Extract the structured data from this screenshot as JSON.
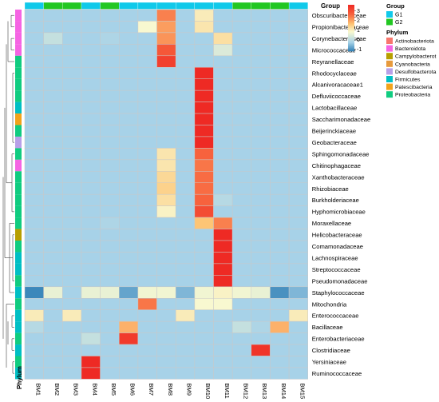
{
  "chart_data": {
    "type": "heatmap",
    "columns": [
      "BM1",
      "BM2",
      "BM3",
      "BM4",
      "BM5",
      "BM6",
      "BM7",
      "BM8",
      "BM9",
      "BM10",
      "BM11",
      "BM12",
      "BM13",
      "BM14",
      "BM15"
    ],
    "column_groups": [
      "G1",
      "G2",
      "G2",
      "G1",
      "G2",
      "G1",
      "G1",
      "G1",
      "G1",
      "G1",
      "G1",
      "G2",
      "G2",
      "G2",
      "G1"
    ],
    "rows": [
      {
        "name": "Obscuribacteraceae",
        "phylum": "Bacteroidota",
        "values": [
          -0.3,
          -0.3,
          -0.3,
          -0.3,
          -0.3,
          -0.3,
          -0.3,
          2.3,
          -0.3,
          1.0,
          -0.3,
          -0.3,
          -0.3,
          -0.3,
          -0.3
        ]
      },
      {
        "name": "Propionibacteriaceae",
        "phylum": "Bacteroidota",
        "values": [
          -0.3,
          -0.3,
          -0.3,
          -0.3,
          -0.3,
          -0.3,
          0.8,
          2.0,
          -0.3,
          1.1,
          -0.3,
          -0.3,
          -0.3,
          -0.3,
          -0.3
        ]
      },
      {
        "name": "Corynebacteriaceae",
        "phylum": "Bacteroidota",
        "values": [
          -0.3,
          0.1,
          -0.3,
          -0.3,
          -0.2,
          -0.3,
          -0.3,
          2.1,
          -0.3,
          -0.3,
          1.2,
          -0.3,
          -0.3,
          -0.3,
          -0.3
        ]
      },
      {
        "name": "Micrococcaceae",
        "phylum": "Bacteroidota",
        "values": [
          -0.3,
          -0.3,
          -0.3,
          -0.3,
          -0.3,
          -0.3,
          -0.3,
          2.8,
          -0.3,
          -0.3,
          0.4,
          -0.3,
          -0.3,
          -0.3,
          -0.3
        ]
      },
      {
        "name": "Reyranellaceae",
        "phylum": "Proteobacteria",
        "values": [
          -0.3,
          -0.3,
          -0.3,
          -0.3,
          -0.3,
          -0.3,
          -0.3,
          3.2,
          -0.3,
          -0.3,
          -0.3,
          -0.3,
          -0.3,
          -0.3,
          -0.3
        ]
      },
      {
        "name": "Rhodocyclaceae",
        "phylum": "Proteobacteria",
        "values": [
          -0.3,
          -0.3,
          -0.3,
          -0.3,
          -0.3,
          -0.3,
          -0.3,
          -0.3,
          -0.3,
          3.6,
          -0.3,
          -0.3,
          -0.3,
          -0.3,
          -0.3
        ]
      },
      {
        "name": "Alcanivoracaceae1",
        "phylum": "Proteobacteria",
        "values": [
          -0.3,
          -0.3,
          -0.3,
          -0.3,
          -0.3,
          -0.3,
          -0.3,
          -0.3,
          -0.3,
          3.6,
          -0.3,
          -0.3,
          -0.3,
          -0.3,
          -0.3
        ]
      },
      {
        "name": "Defluviicoccaceae",
        "phylum": "Proteobacteria",
        "values": [
          -0.3,
          -0.3,
          -0.3,
          -0.3,
          -0.3,
          -0.3,
          -0.3,
          -0.3,
          -0.3,
          3.6,
          -0.3,
          -0.3,
          -0.3,
          -0.3,
          -0.3
        ]
      },
      {
        "name": "Lactobacillaceae",
        "phylum": "Firmicutes",
        "values": [
          -0.3,
          -0.3,
          -0.3,
          -0.3,
          -0.3,
          -0.3,
          -0.3,
          -0.3,
          -0.3,
          3.6,
          -0.3,
          -0.3,
          -0.3,
          -0.3,
          -0.3
        ]
      },
      {
        "name": "Saccharimonadaceae",
        "phylum": "Patescibacteria",
        "values": [
          -0.3,
          -0.3,
          -0.3,
          -0.3,
          -0.3,
          -0.3,
          -0.3,
          -0.3,
          -0.3,
          3.6,
          -0.3,
          -0.3,
          -0.3,
          -0.3,
          -0.3
        ]
      },
      {
        "name": "Beijerinckiaceae",
        "phylum": "Proteobacteria",
        "values": [
          -0.3,
          -0.3,
          -0.3,
          -0.3,
          -0.3,
          -0.3,
          -0.3,
          -0.3,
          -0.3,
          3.6,
          -0.3,
          -0.3,
          -0.3,
          -0.3,
          -0.3
        ]
      },
      {
        "name": "Geobacteraceae",
        "phylum": "Desulfobacterota",
        "values": [
          -0.3,
          -0.3,
          -0.3,
          -0.3,
          -0.3,
          -0.3,
          -0.3,
          -0.3,
          -0.3,
          3.6,
          -0.3,
          -0.3,
          -0.3,
          -0.3,
          -0.3
        ]
      },
      {
        "name": "Sphingomonadaceae",
        "phylum": "Proteobacteria",
        "values": [
          -0.3,
          -0.3,
          -0.3,
          -0.3,
          -0.3,
          -0.3,
          -0.3,
          1.1,
          -0.3,
          2.6,
          -0.3,
          -0.3,
          -0.3,
          -0.3,
          -0.3
        ]
      },
      {
        "name": "Chitinophagaceae",
        "phylum": "Bacteroidota",
        "values": [
          -0.3,
          -0.3,
          -0.3,
          -0.3,
          -0.3,
          -0.3,
          -0.3,
          1.1,
          -0.3,
          2.4,
          -0.3,
          -0.3,
          -0.3,
          -0.3,
          -0.3
        ]
      },
      {
        "name": "Xanthobacteraceae",
        "phylum": "Proteobacteria",
        "values": [
          -0.3,
          -0.3,
          -0.3,
          -0.3,
          -0.3,
          -0.3,
          -0.3,
          1.3,
          -0.3,
          2.5,
          -0.3,
          -0.3,
          -0.3,
          -0.3,
          -0.3
        ]
      },
      {
        "name": "Rhizobiaceae",
        "phylum": "Proteobacteria",
        "values": [
          -0.3,
          -0.3,
          -0.3,
          -0.3,
          -0.3,
          -0.3,
          -0.3,
          1.4,
          -0.3,
          2.5,
          -0.3,
          -0.3,
          -0.3,
          -0.3,
          -0.3
        ]
      },
      {
        "name": "Burkholderiaceae",
        "phylum": "Proteobacteria",
        "values": [
          -0.3,
          -0.3,
          -0.3,
          -0.3,
          -0.3,
          -0.3,
          -0.3,
          1.2,
          -0.3,
          2.6,
          -0.1,
          -0.3,
          -0.3,
          -0.3,
          -0.3
        ]
      },
      {
        "name": "Hyphomicrobiaceae",
        "phylum": "Proteobacteria",
        "values": [
          -0.3,
          -0.3,
          -0.3,
          -0.3,
          -0.3,
          -0.3,
          -0.3,
          0.9,
          -0.3,
          3.0,
          -0.3,
          -0.3,
          -0.3,
          -0.3,
          -0.3
        ]
      },
      {
        "name": "Moraxellaceae",
        "phylum": "Proteobacteria",
        "values": [
          -0.3,
          -0.3,
          -0.3,
          -0.3,
          -0.2,
          -0.3,
          -0.3,
          -0.3,
          -0.3,
          1.6,
          2.3,
          -0.3,
          -0.3,
          -0.3,
          -0.3
        ]
      },
      {
        "name": "Helicobacteraceae",
        "phylum": "Campylobacterot",
        "values": [
          -0.3,
          -0.3,
          -0.3,
          -0.3,
          -0.3,
          -0.3,
          -0.3,
          -0.3,
          -0.3,
          -0.3,
          3.6,
          -0.3,
          -0.3,
          -0.3,
          -0.3
        ]
      },
      {
        "name": "Comamonadaceae",
        "phylum": "Proteobacteria",
        "values": [
          -0.3,
          -0.3,
          -0.3,
          -0.3,
          -0.3,
          -0.3,
          -0.3,
          -0.3,
          -0.3,
          -0.3,
          3.6,
          -0.3,
          -0.3,
          -0.3,
          -0.3
        ]
      },
      {
        "name": "Lachnospiraceae",
        "phylum": "Firmicutes",
        "values": [
          -0.3,
          -0.3,
          -0.3,
          -0.3,
          -0.3,
          -0.3,
          -0.3,
          -0.3,
          -0.3,
          -0.3,
          3.6,
          -0.3,
          -0.3,
          -0.3,
          -0.3
        ]
      },
      {
        "name": "Streptococcaceae",
        "phylum": "Firmicutes",
        "values": [
          -0.3,
          -0.3,
          -0.3,
          -0.3,
          -0.3,
          -0.3,
          -0.3,
          -0.3,
          -0.3,
          -0.3,
          3.6,
          -0.3,
          -0.3,
          -0.3,
          -0.3
        ]
      },
      {
        "name": "Pseudomonadaceae",
        "phylum": "Proteobacteria",
        "values": [
          -0.3,
          -0.3,
          -0.3,
          -0.3,
          -0.3,
          -0.3,
          -0.3,
          -0.3,
          -0.3,
          -0.3,
          3.6,
          -0.3,
          -0.3,
          -0.3,
          -0.3
        ]
      },
      {
        "name": "Staphylococcaceae",
        "phylum": "Firmicutes",
        "values": [
          -1.1,
          0.6,
          -0.3,
          0.6,
          0.6,
          -0.8,
          0.7,
          0.7,
          -0.6,
          0.7,
          0.9,
          0.7,
          0.6,
          -1.0,
          -0.6
        ]
      },
      {
        "name": "Mitochondria",
        "phylum": "Proteobacteria",
        "values": [
          -0.3,
          -0.3,
          -0.3,
          -0.3,
          -0.3,
          -0.3,
          2.4,
          -0.3,
          -0.3,
          0.8,
          0.8,
          -0.3,
          -0.3,
          -0.3,
          -0.3
        ]
      },
      {
        "name": "Enterococcaceae",
        "phylum": "Firmicutes",
        "values": [
          1.0,
          -0.3,
          1.0,
          -0.3,
          -0.3,
          -0.3,
          -0.3,
          -0.3,
          1.0,
          -0.3,
          -0.3,
          -0.3,
          -0.3,
          -0.3,
          1.0
        ]
      },
      {
        "name": "Bacillaceae",
        "phylum": "Firmicutes",
        "values": [
          -0.1,
          -0.3,
          -0.3,
          -0.3,
          -0.3,
          1.8,
          -0.3,
          -0.3,
          -0.3,
          -0.3,
          -0.3,
          0.1,
          -0.2,
          1.8,
          -0.3
        ]
      },
      {
        "name": "Enterobacteriaceae",
        "phylum": "Proteobacteria",
        "values": [
          -0.3,
          -0.3,
          -0.3,
          0.1,
          -0.3,
          3.3,
          -0.3,
          -0.3,
          -0.3,
          -0.3,
          -0.3,
          -0.3,
          -0.3,
          -0.3,
          -0.3
        ]
      },
      {
        "name": "Clostridiaceae",
        "phylum": "Firmicutes",
        "values": [
          -0.3,
          -0.3,
          -0.3,
          -0.3,
          -0.3,
          -0.3,
          -0.3,
          -0.3,
          -0.3,
          -0.3,
          -0.3,
          -0.3,
          3.4,
          -0.3,
          -0.3
        ]
      },
      {
        "name": "Yersiniaceae",
        "phylum": "Proteobacteria",
        "values": [
          -0.3,
          -0.3,
          -0.3,
          3.6,
          -0.3,
          -0.3,
          -0.3,
          -0.3,
          -0.3,
          -0.3,
          -0.3,
          -0.3,
          -0.3,
          -0.3,
          -0.3
        ]
      },
      {
        "name": "Ruminococcaceae",
        "phylum": "Firmicutes",
        "values": [
          -0.3,
          -0.3,
          -0.3,
          3.6,
          -0.3,
          -0.3,
          -0.3,
          -0.3,
          -0.3,
          -0.3,
          -0.3,
          -0.3,
          -0.3,
          -0.3,
          -0.3
        ]
      }
    ],
    "color_scale": {
      "ticks": [
        3,
        2,
        1,
        0,
        -1
      ],
      "stops": [
        {
          "value": -1.2,
          "color": "#2f7fb5"
        },
        {
          "value": -0.3,
          "color": "#a7d2e8"
        },
        {
          "value": 0.8,
          "color": "#f8f8d0"
        },
        {
          "value": 1.6,
          "color": "#fdc575"
        },
        {
          "value": 2.6,
          "color": "#f7623d"
        },
        {
          "value": 3.6,
          "color": "#ee2a24"
        }
      ]
    },
    "group_annotation": {
      "title": "Group",
      "levels": [
        "G1",
        "G2"
      ],
      "colors": {
        "G1": "#10c9ea",
        "G2": "#22c722"
      }
    },
    "row_annotation": {
      "title": "Phylum",
      "levels": [
        "Actinobacteriota",
        "Bacteroidota",
        "Campylobacterot",
        "Cyanobacteria",
        "Desulfobacterota",
        "Firmicutes",
        "Patescibacteria",
        "Proteobacteria"
      ],
      "colors": {
        "Actinobacteriota": "#f8766d",
        "Bacteroidota": "#f564e3",
        "Campylobacterot": "#b79f00",
        "Cyanobacteria": "#e79a3c",
        "Desulfobacterota": "#b8a0e8",
        "Firmicutes": "#00bfc4",
        "Patescibacteria": "#f2a31b",
        "Proteobacteria": "#10cc80"
      }
    }
  }
}
